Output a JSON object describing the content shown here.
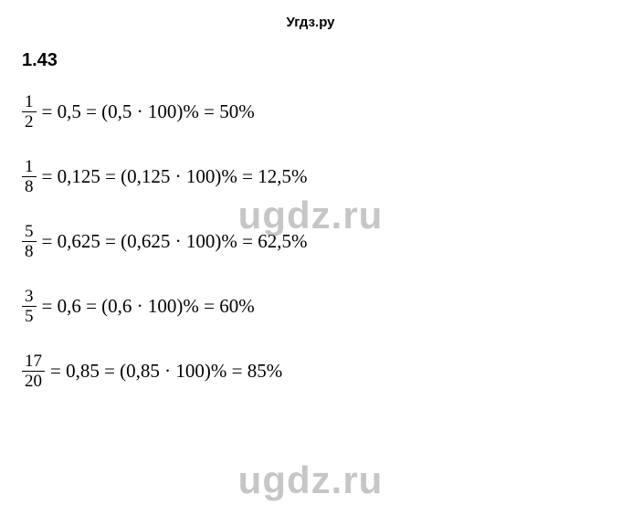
{
  "header": {
    "site": "Угдз.ру"
  },
  "problem": {
    "number": "1.43"
  },
  "equations": [
    {
      "numerator": "1",
      "denominator": "2",
      "rest": " = 0,5 = (0,5 · 100)% = 50%"
    },
    {
      "numerator": "1",
      "denominator": "8",
      "rest": " = 0,125 = (0,125 · 100)% = 12,5%"
    },
    {
      "numerator": "5",
      "denominator": "8",
      "rest": " = 0,625 = (0,625 · 100)% = 62,5%"
    },
    {
      "numerator": "3",
      "denominator": "5",
      "rest": " = 0,6 = (0,6 · 100)% = 60%"
    },
    {
      "numerator": "17",
      "denominator": "20",
      "rest": " = 0,85 = (0,85 · 100)% = 85%"
    }
  ],
  "watermark": {
    "text": "ugdz.ru"
  },
  "styling": {
    "background_color": "#ffffff",
    "text_color": "#000000",
    "watermark_color": "rgba(120,120,120,0.42)",
    "header_fontsize": 15,
    "problem_fontsize": 20,
    "equation_fontsize": 21,
    "fraction_fontsize": 19,
    "watermark_fontsize": 42
  }
}
